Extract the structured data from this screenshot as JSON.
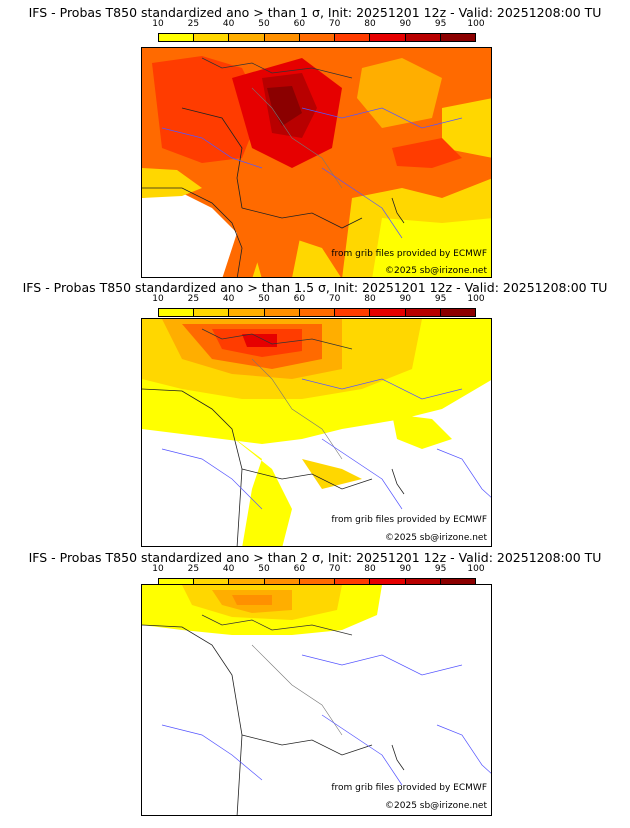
{
  "colorbar": {
    "ticks": [
      "10",
      "25",
      "40",
      "50",
      "60",
      "70",
      "80",
      "90",
      "95",
      "100"
    ],
    "colors": [
      "#ffff00",
      "#ffd700",
      "#ffae00",
      "#ff9000",
      "#ff6a00",
      "#ff3c00",
      "#e60000",
      "#b80000",
      "#8b0000"
    ]
  },
  "panels": [
    {
      "title": "IFS - Probas T850  standardized ano > than 1 σ, Init: 20251201 12z - Valid: 20251208:00 TU",
      "credit_source": "from grib files provided by ECMWF",
      "credit_copy": "©2025 sb@irizone.net"
    },
    {
      "title": "IFS - Probas T850  standardized ano > than 1.5 σ, Init: 20251201 12z - Valid: 20251208:00 TU",
      "credit_source": "from grib files provided by ECMWF",
      "credit_copy": "©2025 sb@irizone.net"
    },
    {
      "title": "IFS - Probas T850  standardized ano > than 2 σ, Init: 20251201 12z - Valid: 20251208:00 TU",
      "credit_source": "from grib files provided by ECMWF",
      "credit_copy": "©2025 sb@irizone.net"
    }
  ]
}
